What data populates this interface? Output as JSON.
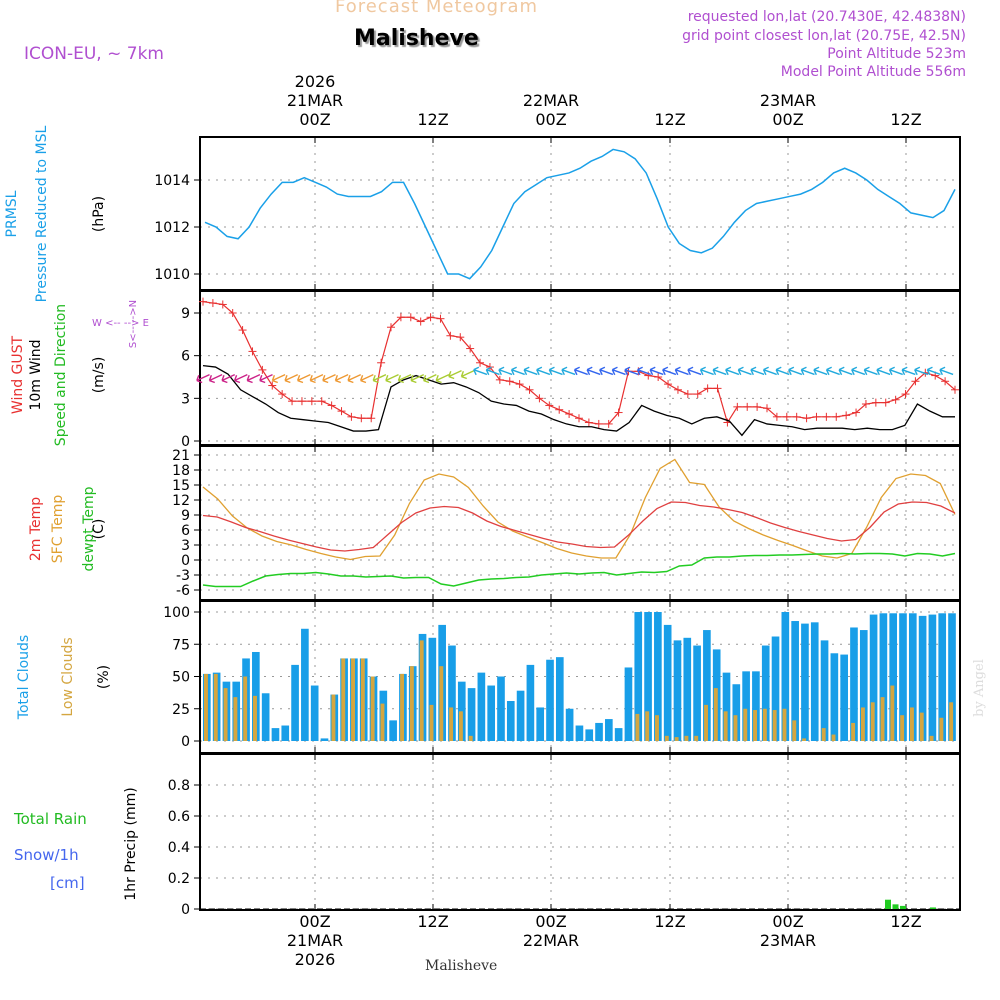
{
  "header": {
    "forecast_title": "Forecast Meteogram",
    "location": "Malisheve",
    "model": "ICON-EU,  ~ 7km",
    "requested": "requested lon,lat (20.7430E, 42.4838N)",
    "grid": "grid point closest lon,lat (20.75E, 42.5N)",
    "point_alt": "Point Altitude 523m",
    "model_alt": "Model Point Altitude 556m",
    "footer_location": "Malisheve",
    "credit": "by Angel"
  },
  "time_axis": {
    "top": [
      {
        "lines": [
          "2026",
          "21MAR",
          "00Z"
        ]
      },
      {
        "lines": [
          "12Z"
        ]
      },
      {
        "lines": [
          "22MAR",
          "00Z"
        ]
      },
      {
        "lines": [
          "12Z"
        ]
      },
      {
        "lines": [
          "23MAR",
          "00Z"
        ]
      },
      {
        "lines": [
          "12Z"
        ]
      }
    ],
    "bottom": [
      {
        "lines": [
          "00Z",
          "21MAR",
          "2026"
        ]
      },
      {
        "lines": [
          "12Z"
        ]
      },
      {
        "lines": [
          "00Z",
          "22MAR"
        ]
      },
      {
        "lines": [
          "12Z"
        ]
      },
      {
        "lines": [
          "00Z",
          "23MAR"
        ]
      },
      {
        "lines": [
          "12Z"
        ]
      }
    ]
  },
  "panel_labels": {
    "pressure": {
      "a": "PRMSL",
      "b": "Pressure Reduced to MSL",
      "unit": "(hPa)"
    },
    "wind": {
      "a": "Wind GUST",
      "b": "10m Wind",
      "c": "Speed and Direction",
      "unit": "(m/s)",
      "compass_ns": "S<-- -->N",
      "compass_we": "W <-- --> E"
    },
    "temp": {
      "a": "2m Temp",
      "b": "SFC Temp",
      "c": "dewpt Temp",
      "unit": "(C)"
    },
    "cloud": {
      "a": "Total Clouds",
      "b": "Low Clouds",
      "unit": "(%)"
    },
    "precip": {
      "a": "Total  Rain",
      "b": "Snow/1h",
      "c": "[cm]",
      "unit": "1hr Precip (mm)"
    }
  },
  "colors": {
    "pressure": "#1aa0e8",
    "gust": "#e83030",
    "wind": "#000000",
    "sfc": "#e0a030",
    "temp2m": "#e04040",
    "dew": "#22cc22",
    "cloud_total": "#189ee8",
    "cloud_low": "#d4a640",
    "rain": "#22cc22",
    "purple": "#b04fd0"
  },
  "chart_data": [
    {
      "type": "line",
      "title": "PRMSL Pressure Reduced to MSL",
      "ylabel": "hPa",
      "yticks": [
        1010,
        1012,
        1014
      ],
      "ylim": [
        1009.3,
        1015.9
      ],
      "x_hours": [
        -21,
        -20,
        -19,
        -18,
        -17,
        -16,
        -15,
        -14,
        -13,
        -12,
        -11,
        -10,
        -9,
        -8,
        -7,
        -6,
        -5,
        -4,
        -3,
        -2,
        -1,
        0,
        1,
        2,
        3,
        4,
        5,
        6,
        7,
        8,
        9,
        10,
        11,
        12,
        13,
        14,
        15,
        16,
        17,
        18,
        19,
        20,
        21,
        22,
        23,
        24,
        25,
        26,
        27,
        28,
        29,
        30,
        31,
        32,
        33,
        34,
        35,
        36,
        37,
        38,
        39,
        40,
        41,
        42,
        43,
        44,
        45,
        46,
        47,
        48,
        49,
        50,
        51,
        52,
        53,
        54,
        55,
        56,
        57,
        58,
        59,
        60,
        61,
        62,
        63,
        64,
        65,
        66,
        67,
        68,
        69,
        70,
        71,
        72,
        73,
        74,
        75,
        76
      ],
      "series": [
        {
          "name": "PRMSL",
          "values": [
            1012.2,
            1012.0,
            1011.6,
            1011.5,
            1012.0,
            1012.8,
            1013.4,
            1013.9,
            1013.9,
            1014.1,
            1013.9,
            1013.7,
            1013.4,
            1013.3,
            1013.3,
            1013.3,
            1013.5,
            1013.9,
            1013.9,
            1013.0,
            1012.0,
            1011.0,
            1010.0,
            1010.0,
            1009.8,
            1010.3,
            1011.0,
            1012.0,
            1013.0,
            1013.5,
            1013.8,
            1014.1,
            1014.2,
            1014.3,
            1014.5,
            1014.8,
            1015.0,
            1015.3,
            1015.2,
            1014.9,
            1014.3,
            1013.2,
            1012.0,
            1011.3,
            1011.0,
            1010.9,
            1011.1,
            1011.6,
            1012.2,
            1012.7,
            1013.0,
            1013.1,
            1013.2,
            1013.3,
            1013.4,
            1013.6,
            1013.9,
            1014.3,
            1014.5,
            1014.3,
            1014.0,
            1013.6,
            1013.3,
            1013.0,
            1012.6,
            1012.5,
            1012.4,
            1012.7,
            1013.6
          ]
        }
      ],
      "x_start_index": 0
    },
    {
      "type": "line",
      "title": "Wind GUST / 10m Wind Speed and Direction",
      "ylabel": "m/s",
      "yticks": [
        0,
        3,
        6,
        9
      ],
      "ylim": [
        0,
        10
      ],
      "series": [
        {
          "name": "Wind GUST",
          "values": [
            9.8,
            9.7,
            9.6,
            9.0,
            7.8,
            6.3,
            5.0,
            3.9,
            3.3,
            2.8,
            2.8,
            2.8,
            2.8,
            2.5,
            2.1,
            1.7,
            1.6,
            1.6,
            5.5,
            8.0,
            8.7,
            8.7,
            8.4,
            8.7,
            8.6,
            7.4,
            7.3,
            6.5,
            5.5,
            5.2,
            4.3,
            4.2,
            4.0,
            3.6,
            3.0,
            2.5,
            2.2,
            1.9,
            1.6,
            1.3,
            1.2,
            1.2,
            2.0,
            4.9,
            4.9,
            4.6,
            4.5,
            4.0,
            3.6,
            3.3,
            3.3,
            3.7,
            3.7,
            1.3,
            2.4,
            2.4,
            2.4,
            2.3,
            1.7,
            1.7,
            1.7,
            1.6,
            1.7,
            1.7,
            1.7,
            1.8,
            2.0,
            2.6,
            2.7,
            2.7,
            2.9,
            3.3,
            4.2,
            4.8,
            4.6,
            4.2,
            3.6
          ]
        },
        {
          "name": "10m Wind",
          "values": [
            5.3,
            5.2,
            4.7,
            3.6,
            3.1,
            2.6,
            2.0,
            1.6,
            1.5,
            1.4,
            1.3,
            1.0,
            0.7,
            0.7,
            0.8,
            3.8,
            4.3,
            4.6,
            4.3,
            4.0,
            4.1,
            3.8,
            3.4,
            2.8,
            2.6,
            2.5,
            2.1,
            1.9,
            1.5,
            1.2,
            1.0,
            1.0,
            0.8,
            0.7,
            1.3,
            2.5,
            2.1,
            1.8,
            1.6,
            1.2,
            1.6,
            1.7,
            1.4,
            0.4,
            1.5,
            1.2,
            1.1,
            1.0,
            0.8,
            0.9,
            0.9,
            0.9,
            0.8,
            0.9,
            0.8,
            0.8,
            1.1,
            2.6,
            2.1,
            1.7,
            1.7
          ]
        }
      ]
    },
    {
      "type": "line",
      "title": "2m Temp / SFC Temp / dewpt Temp",
      "ylabel": "C",
      "yticks": [
        -6,
        -3,
        0,
        3,
        6,
        9,
        12,
        15,
        18,
        21
      ],
      "ylim": [
        -7,
        22
      ],
      "series": [
        {
          "name": "2m Temp",
          "values": [
            8.9,
            8.6,
            7.6,
            6.5,
            5.7,
            4.8,
            4.0,
            3.3,
            2.6,
            2.0,
            1.8,
            2.1,
            2.5,
            5.0,
            7.5,
            9.4,
            10.4,
            10.7,
            10.5,
            9.4,
            7.8,
            6.7,
            5.9,
            5.1,
            4.3,
            3.6,
            3.2,
            2.7,
            2.5,
            2.6,
            5.0,
            7.8,
            10.3,
            11.6,
            11.5,
            10.9,
            10.6,
            10.1,
            9.5,
            8.5,
            7.4,
            6.5,
            5.7,
            5.0,
            4.3,
            3.8,
            4.1,
            6.5,
            9.6,
            11.2,
            11.6,
            11.5,
            10.8,
            9.4
          ]
        },
        {
          "name": "SFC Temp",
          "values": [
            14.6,
            12.2,
            8.8,
            6.4,
            4.8,
            3.7,
            3.0,
            2.1,
            1.3,
            0.6,
            0.1,
            0.7,
            0.8,
            5.0,
            11.3,
            16.0,
            17.2,
            16.6,
            14.5,
            10.8,
            7.6,
            5.8,
            4.6,
            3.5,
            2.3,
            1.4,
            0.8,
            0.4,
            0.4,
            5.2,
            12.5,
            18.3,
            20.1,
            15.5,
            15.1,
            10.6,
            7.8,
            6.3,
            5.0,
            3.9,
            2.9,
            1.8,
            0.8,
            0.4,
            1.3,
            6.5,
            12.5,
            16.3,
            17.2,
            16.9,
            15.3,
            9.1
          ]
        },
        {
          "name": "dewpt Temp",
          "values": [
            -5.0,
            -5.3,
            -5.3,
            -5.3,
            -4.2,
            -3.2,
            -2.9,
            -2.7,
            -2.7,
            -2.5,
            -2.8,
            -3.2,
            -3.2,
            -3.4,
            -3.3,
            -3.2,
            -3.6,
            -3.5,
            -3.5,
            -4.8,
            -5.2,
            -4.6,
            -4.0,
            -3.8,
            -3.7,
            -3.5,
            -3.4,
            -3.0,
            -2.8,
            -2.6,
            -2.8,
            -2.6,
            -2.5,
            -3.0,
            -2.7,
            -2.4,
            -2.5,
            -2.3,
            -1.2,
            -1.0,
            0.4,
            0.6,
            0.6,
            0.8,
            0.9,
            0.9,
            1.0,
            1.0,
            1.1,
            1.2,
            1.2,
            1.3,
            1.2,
            1.3,
            1.3,
            1.2,
            0.8,
            1.3,
            1.2,
            0.8,
            1.3
          ]
        }
      ]
    },
    {
      "type": "bar",
      "title": "Total Clouds / Low Clouds",
      "ylabel": "%",
      "yticks": [
        0,
        25,
        50,
        75,
        100
      ],
      "ylim": [
        0,
        100
      ],
      "series": [
        {
          "name": "Total Clouds",
          "values": [
            52,
            53,
            46,
            46,
            64,
            69,
            37,
            10,
            12,
            59,
            87,
            43,
            2,
            36,
            64,
            64,
            64,
            50,
            39,
            16,
            52,
            58,
            83,
            80,
            90,
            74,
            46,
            41,
            53,
            43,
            50,
            31,
            39,
            59,
            26,
            63,
            65,
            25,
            12,
            9,
            14,
            17,
            10,
            57,
            100,
            100,
            100,
            90,
            78,
            80,
            74,
            86,
            71,
            53,
            44,
            54,
            54,
            74,
            81,
            100,
            93,
            91,
            92,
            78,
            68,
            67,
            88,
            86,
            98,
            99,
            99,
            99,
            99,
            97,
            98,
            99,
            99
          ]
        },
        {
          "name": "Low Clouds",
          "values": [
            52,
            52,
            41,
            34,
            50,
            35,
            0,
            0,
            0,
            0,
            0,
            0,
            0,
            36,
            64,
            64,
            64,
            50,
            29,
            0,
            52,
            58,
            78,
            28,
            58,
            26,
            23,
            4,
            0,
            0,
            0,
            0,
            0,
            0,
            0,
            0,
            0,
            0,
            0,
            0,
            0,
            0,
            0,
            0,
            21,
            23,
            20,
            4,
            3,
            4,
            4,
            28,
            41,
            23,
            20,
            25,
            24,
            25,
            24,
            25,
            16,
            2,
            0,
            10,
            5,
            0,
            14,
            26,
            30,
            34,
            43,
            20,
            26,
            22,
            4,
            18,
            30
          ]
        }
      ]
    },
    {
      "type": "bar",
      "title": "1hr Precip",
      "ylabel": "mm",
      "yticks": [
        0,
        0.2,
        0.4,
        0.6,
        0.8
      ],
      "ylim": [
        0,
        0.97
      ],
      "series": [
        {
          "name": "Total Rain",
          "values": [
            0.06,
            0.03,
            0.02,
            0,
            0,
            0,
            0.01
          ]
        },
        {
          "name": "Snow/1h",
          "values": []
        }
      ],
      "rain_start_hour": 61
    }
  ]
}
